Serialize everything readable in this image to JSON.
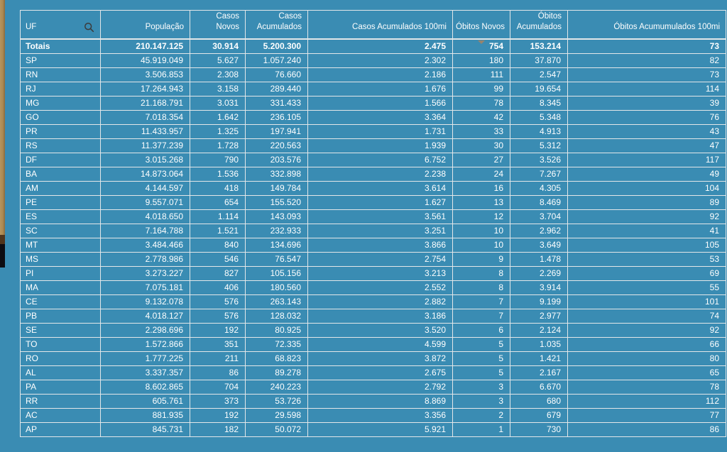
{
  "colors": {
    "background": "#3a8cb3",
    "grid_line": "#e3e7e9",
    "text": "#ffffff",
    "search_icon": "#3b3b3b",
    "sort_arrow": "#97836d",
    "sliver_tan": "#ac8a52",
    "sliver_dark": "#4f351d",
    "sliver_black": "#0d0d12"
  },
  "table": {
    "sorted_by": {
      "column": "Óbitos Novos",
      "direction": "desc"
    },
    "columns": [
      {
        "key": "uf",
        "label": "UF"
      },
      {
        "key": "populacao",
        "label": "População"
      },
      {
        "key": "casos_novos",
        "label": "Casos Novos"
      },
      {
        "key": "casos_acumulados",
        "label": "Casos Acumulados"
      },
      {
        "key": "casos_acumulados_100mi",
        "label": "Casos Acumulados 100mi"
      },
      {
        "key": "obitos_novos",
        "label": "Óbitos Novos"
      },
      {
        "key": "obitos_acumulados",
        "label": "Óbitos Acumulados"
      },
      {
        "key": "obitos_acumulados_100mi",
        "label": "Óbitos Acumumulados 100mi"
      }
    ],
    "totals_row": [
      "Totais",
      "210.147.125",
      "30.914",
      "5.200.300",
      "2.475",
      "754",
      "153.214",
      "73"
    ],
    "rows": [
      [
        "SP",
        "45.919.049",
        "5.627",
        "1.057.240",
        "2.302",
        "180",
        "37.870",
        "82"
      ],
      [
        "RN",
        "3.506.853",
        "2.308",
        "76.660",
        "2.186",
        "111",
        "2.547",
        "73"
      ],
      [
        "RJ",
        "17.264.943",
        "3.158",
        "289.440",
        "1.676",
        "99",
        "19.654",
        "114"
      ],
      [
        "MG",
        "21.168.791",
        "3.031",
        "331.433",
        "1.566",
        "78",
        "8.345",
        "39"
      ],
      [
        "GO",
        "7.018.354",
        "1.642",
        "236.105",
        "3.364",
        "42",
        "5.348",
        "76"
      ],
      [
        "PR",
        "11.433.957",
        "1.325",
        "197.941",
        "1.731",
        "33",
        "4.913",
        "43"
      ],
      [
        "RS",
        "11.377.239",
        "1.728",
        "220.563",
        "1.939",
        "30",
        "5.312",
        "47"
      ],
      [
        "DF",
        "3.015.268",
        "790",
        "203.576",
        "6.752",
        "27",
        "3.526",
        "117"
      ],
      [
        "BA",
        "14.873.064",
        "1.536",
        "332.898",
        "2.238",
        "24",
        "7.267",
        "49"
      ],
      [
        "AM",
        "4.144.597",
        "418",
        "149.784",
        "3.614",
        "16",
        "4.305",
        "104"
      ],
      [
        "PE",
        "9.557.071",
        "654",
        "155.520",
        "1.627",
        "13",
        "8.469",
        "89"
      ],
      [
        "ES",
        "4.018.650",
        "1.114",
        "143.093",
        "3.561",
        "12",
        "3.704",
        "92"
      ],
      [
        "SC",
        "7.164.788",
        "1.521",
        "232.933",
        "3.251",
        "10",
        "2.962",
        "41"
      ],
      [
        "MT",
        "3.484.466",
        "840",
        "134.696",
        "3.866",
        "10",
        "3.649",
        "105"
      ],
      [
        "MS",
        "2.778.986",
        "546",
        "76.547",
        "2.754",
        "9",
        "1.478",
        "53"
      ],
      [
        "PI",
        "3.273.227",
        "827",
        "105.156",
        "3.213",
        "8",
        "2.269",
        "69"
      ],
      [
        "MA",
        "7.075.181",
        "406",
        "180.560",
        "2.552",
        "8",
        "3.914",
        "55"
      ],
      [
        "CE",
        "9.132.078",
        "576",
        "263.143",
        "2.882",
        "7",
        "9.199",
        "101"
      ],
      [
        "PB",
        "4.018.127",
        "576",
        "128.032",
        "3.186",
        "7",
        "2.977",
        "74"
      ],
      [
        "SE",
        "2.298.696",
        "192",
        "80.925",
        "3.520",
        "6",
        "2.124",
        "92"
      ],
      [
        "TO",
        "1.572.866",
        "351",
        "72.335",
        "4.599",
        "5",
        "1.035",
        "66"
      ],
      [
        "RO",
        "1.777.225",
        "211",
        "68.823",
        "3.872",
        "5",
        "1.421",
        "80"
      ],
      [
        "AL",
        "3.337.357",
        "86",
        "89.278",
        "2.675",
        "5",
        "2.167",
        "65"
      ],
      [
        "PA",
        "8.602.865",
        "704",
        "240.223",
        "2.792",
        "3",
        "6.670",
        "78"
      ],
      [
        "RR",
        "605.761",
        "373",
        "53.726",
        "8.869",
        "3",
        "680",
        "112"
      ],
      [
        "AC",
        "881.935",
        "192",
        "29.598",
        "3.356",
        "2",
        "679",
        "77"
      ],
      [
        "AP",
        "845.731",
        "182",
        "50.072",
        "5.921",
        "1",
        "730",
        "86"
      ]
    ]
  }
}
